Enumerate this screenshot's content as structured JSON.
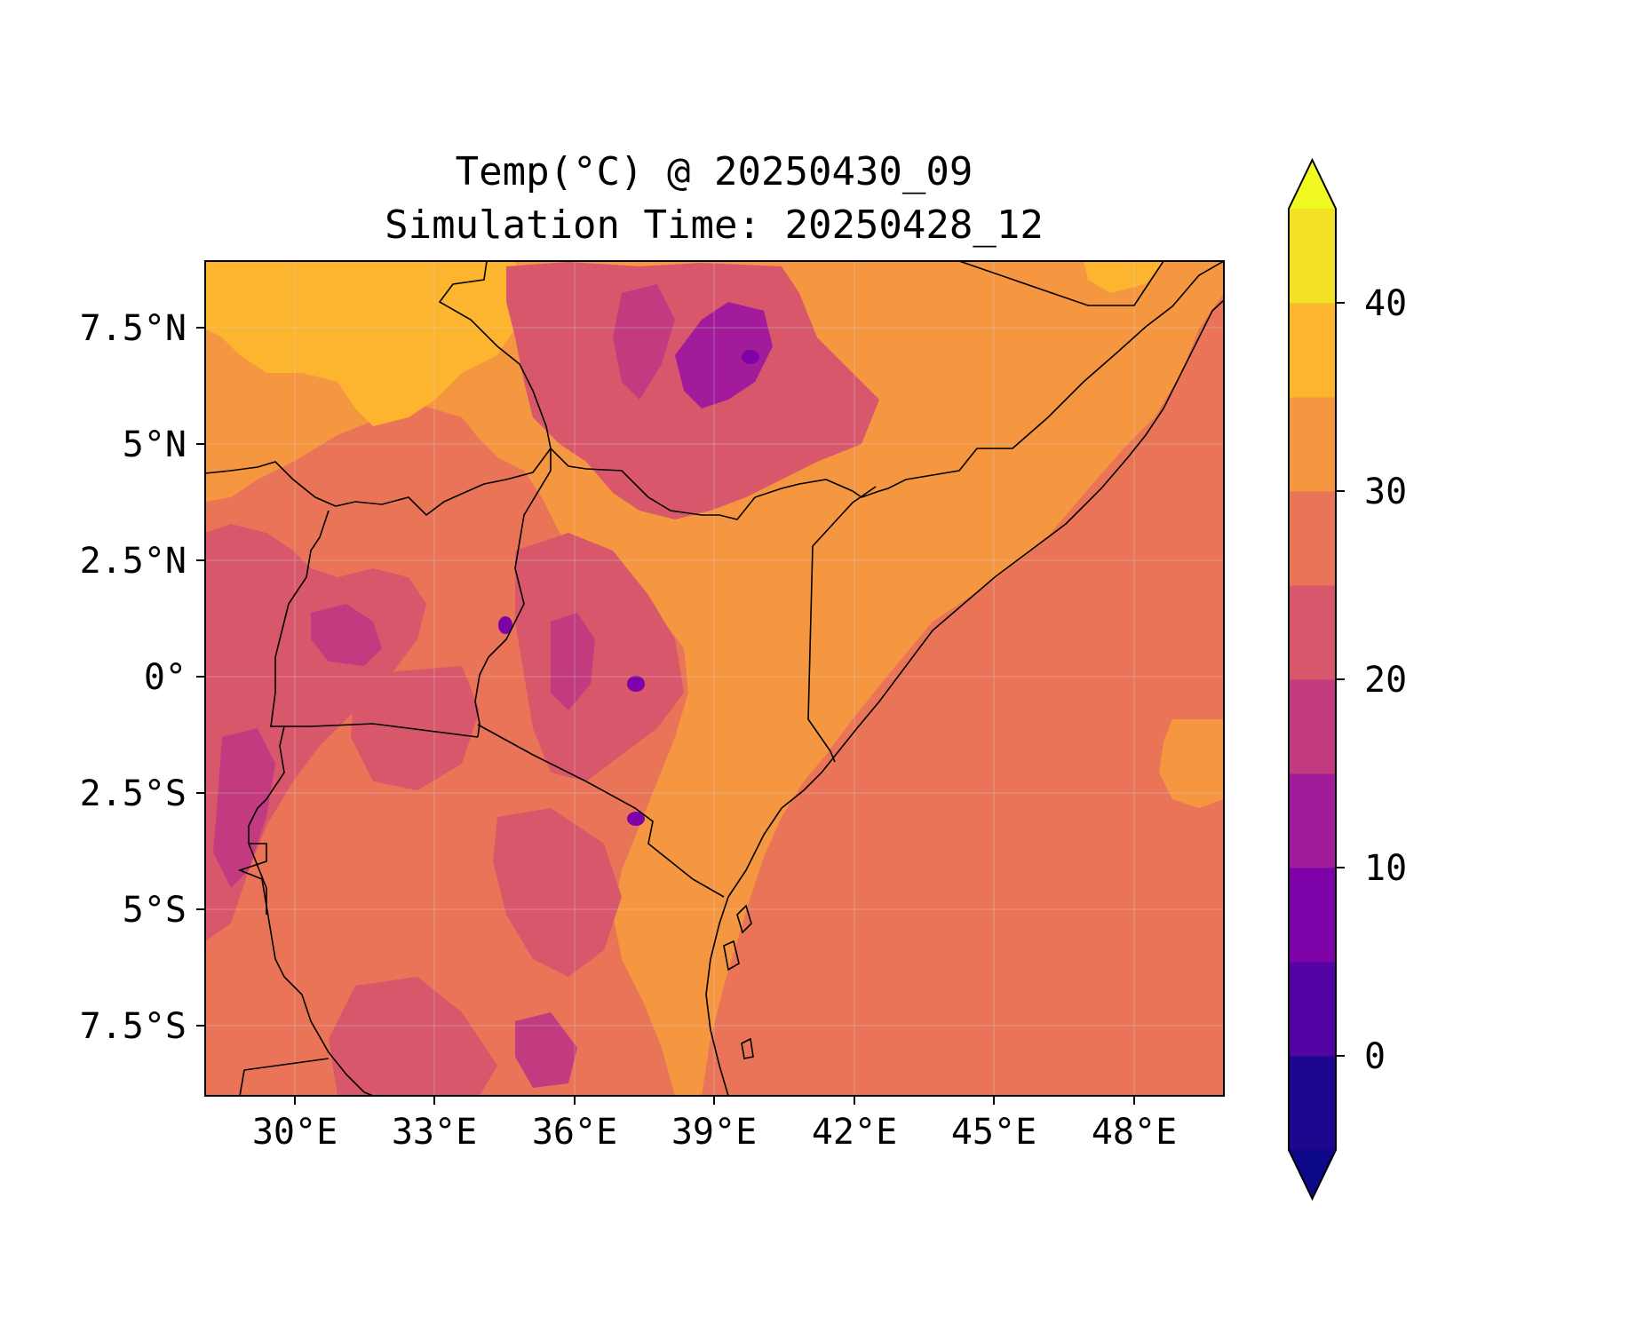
{
  "title": {
    "line1": "Temp(°C) @ 20250430_09",
    "line2": "Simulation Time: 20250428_12"
  },
  "map": {
    "region": "East Africa",
    "lon_range": [
      27.4,
      49.3
    ],
    "lat_range": [
      -9.0,
      8.9
    ],
    "x_ticks": [
      "30°E",
      "33°E",
      "36°E",
      "39°E",
      "42°E",
      "45°E",
      "48°E"
    ],
    "y_ticks": [
      "7.5°N",
      "5°N",
      "2.5°N",
      "0°",
      "2.5°S",
      "5°S",
      "7.5°S"
    ],
    "features": [
      "country-borders",
      "coastline",
      "lakes",
      "gridlines"
    ]
  },
  "colorbar": {
    "label_ticks": [
      "40",
      "30",
      "20",
      "10",
      "0"
    ],
    "levels": [
      -5,
      0,
      5,
      10,
      15,
      20,
      25,
      30,
      35,
      40,
      45
    ],
    "colors": [
      "#0d0887",
      "#1e068e",
      "#5302a3",
      "#7d03a8",
      "#a11b9b",
      "#c23b81",
      "#d8576b",
      "#ea7457",
      "#f59641",
      "#fdb42f",
      "#f3e125",
      "#f0f921"
    ],
    "extend": "both"
  },
  "colors": {
    "ocean_warm": "#ea7457",
    "land_hot": "#f59641",
    "land_hottest": "#fdb42f",
    "highland": "#d8576b",
    "cool_peaks": "#a11b9b",
    "coldest_peaks": "#7d03a8"
  }
}
